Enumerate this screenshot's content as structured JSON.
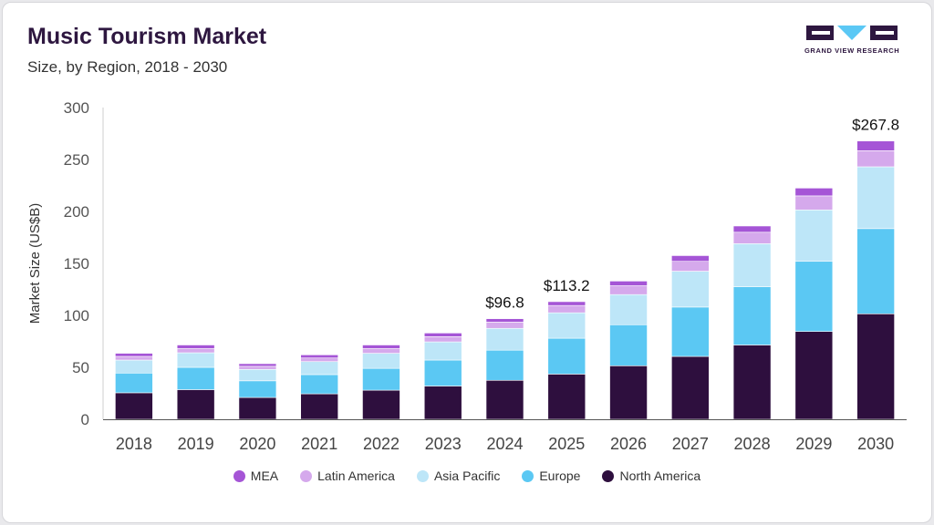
{
  "header": {
    "title": "Music Tourism Market",
    "subtitle": "Size, by Region, 2018 - 2030"
  },
  "logo": {
    "text": "GRAND VIEW RESEARCH",
    "color": "#2e1740",
    "accent": "#5bc8f5"
  },
  "chart_data": {
    "type": "bar",
    "stacked": true,
    "ylabel": "Market Size (US$B)",
    "xlabel": "",
    "ylim": [
      0,
      300
    ],
    "yticks": [
      0,
      50,
      100,
      150,
      200,
      250,
      300
    ],
    "grid": false,
    "legend_position": "bottom",
    "categories": [
      "2018",
      "2019",
      "2020",
      "2021",
      "2022",
      "2023",
      "2024",
      "2025",
      "2026",
      "2027",
      "2028",
      "2029",
      "2030"
    ],
    "series": [
      {
        "name": "North America",
        "color": "#2e0f3e",
        "values": [
          25.5,
          28.5,
          21,
          24.5,
          28,
          32,
          37.5,
          43.5,
          51.5,
          60.5,
          71.5,
          84.5,
          101.5
        ]
      },
      {
        "name": "Europe",
        "color": "#5bc8f3",
        "values": [
          19,
          21.5,
          16,
          18.5,
          21,
          25,
          29,
          34.5,
          39.5,
          47.5,
          56,
          67.5,
          82
        ]
      },
      {
        "name": "Asia Pacific",
        "color": "#bde6f8",
        "values": [
          12.5,
          14,
          11,
          12.5,
          14.5,
          17.5,
          21,
          24.5,
          29,
          34.5,
          41.5,
          49.5,
          59.5
        ]
      },
      {
        "name": "Latin America",
        "color": "#d5a9ec",
        "values": [
          3.5,
          4,
          3,
          3.5,
          4.5,
          5,
          6,
          7,
          8.5,
          9.5,
          11,
          13.5,
          15.5
        ]
      },
      {
        "name": "MEA",
        "color": "#a555d6",
        "values": [
          3,
          3.5,
          2.5,
          3,
          3.5,
          3.5,
          3.3,
          3.7,
          4.5,
          5.5,
          6,
          7.5,
          9.3
        ]
      }
    ],
    "legend_order": [
      "MEA",
      "Latin America",
      "Asia Pacific",
      "Europe",
      "North America"
    ],
    "annotations": [
      {
        "category": "2024",
        "label": "$96.8",
        "value": 96.8
      },
      {
        "category": "2025",
        "label": "$113.2",
        "value": 113.2
      },
      {
        "category": "2030",
        "label": "$267.8",
        "value": 267.8
      }
    ]
  }
}
